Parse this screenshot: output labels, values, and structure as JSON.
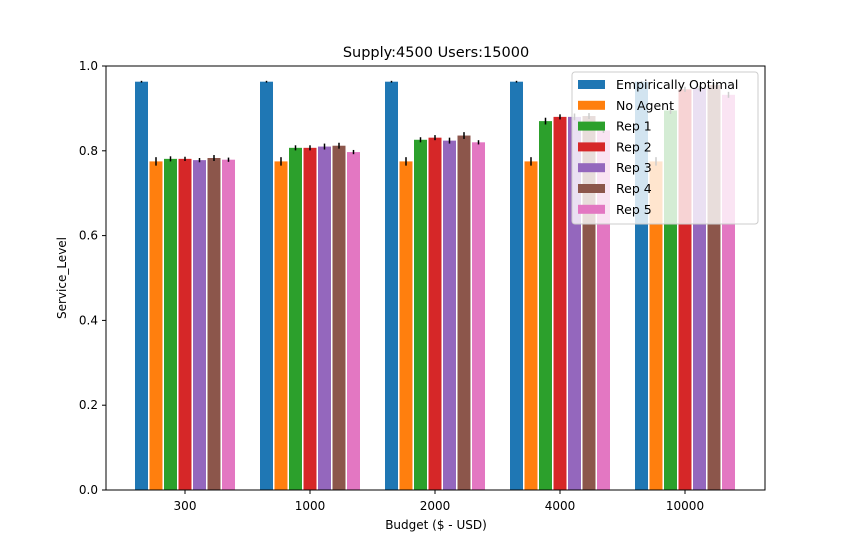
{
  "chart_data": {
    "type": "bar",
    "title": "Supply:4500 Users:15000",
    "xlabel": "Budget ($ - USD)",
    "ylabel": "Service_Level",
    "ylim": [
      0,
      1.0
    ],
    "yticks": [
      "0.0",
      "0.2",
      "0.4",
      "0.6",
      "0.8",
      "1.0"
    ],
    "categories": [
      "300",
      "1000",
      "2000",
      "4000",
      "10000"
    ],
    "legend_position": "top-right",
    "grid": false,
    "series": [
      {
        "name": "Empirically Optimal",
        "color": "#1f77b4",
        "values": [
          0.963,
          0.963,
          0.963,
          0.963,
          0.963
        ],
        "errors": [
          0.002,
          0.002,
          0.002,
          0.002,
          0.002
        ]
      },
      {
        "name": "No Agent",
        "color": "#ff7f0e",
        "values": [
          0.775,
          0.775,
          0.775,
          0.775,
          0.775
        ],
        "errors": [
          0.01,
          0.01,
          0.01,
          0.01,
          0.01
        ]
      },
      {
        "name": "Rep 1",
        "color": "#2ca02c",
        "values": [
          0.781,
          0.807,
          0.826,
          0.87,
          0.895
        ],
        "errors": [
          0.006,
          0.006,
          0.006,
          0.008,
          0.008
        ]
      },
      {
        "name": "Rep 2",
        "color": "#d62728",
        "values": [
          0.781,
          0.807,
          0.831,
          0.88,
          0.945
        ],
        "errors": [
          0.005,
          0.006,
          0.006,
          0.006,
          0.006
        ]
      },
      {
        "name": "Rep 3",
        "color": "#9467bd",
        "values": [
          0.778,
          0.81,
          0.824,
          0.88,
          0.948
        ],
        "errors": [
          0.005,
          0.007,
          0.007,
          0.008,
          0.006
        ]
      },
      {
        "name": "Rep 4",
        "color": "#8c564b",
        "values": [
          0.783,
          0.812,
          0.836,
          0.882,
          0.955
        ],
        "errors": [
          0.007,
          0.007,
          0.008,
          0.007,
          0.006
        ]
      },
      {
        "name": "Rep 5",
        "color": "#e377c2",
        "values": [
          0.779,
          0.797,
          0.82,
          0.848,
          0.932
        ],
        "errors": [
          0.005,
          0.005,
          0.005,
          0.006,
          0.007
        ]
      }
    ]
  }
}
